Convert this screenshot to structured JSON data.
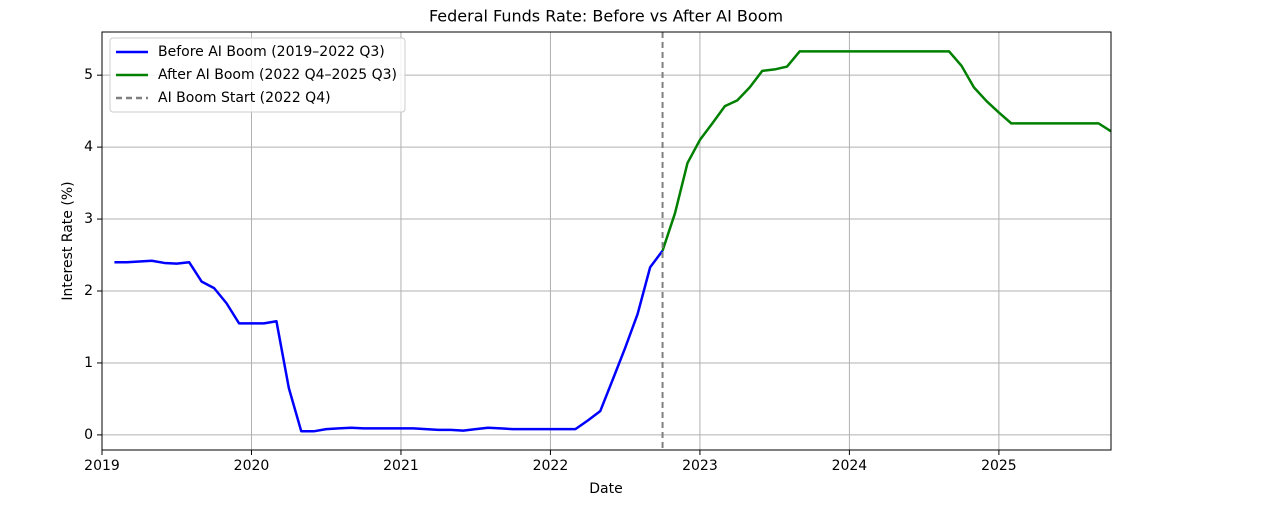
{
  "chart_data": {
    "type": "line",
    "title": "Federal Funds Rate: Before vs After AI Boom",
    "x_label": "Date",
    "y_label": "Interest Rate (%)",
    "xlim": [
      2019,
      2025.75
    ],
    "ylim": [
      -0.21,
      5.6
    ],
    "xticks": [
      2019,
      2020,
      2021,
      2022,
      2023,
      2024,
      2025
    ],
    "yticks": [
      0,
      1,
      2,
      3,
      4,
      5
    ],
    "grid": true,
    "legend": "upper left",
    "series": [
      {
        "name": "Before AI Boom (2019–2022 Q3)",
        "color": "#0000ff",
        "x": [
          2019.083,
          2019.167,
          2019.25,
          2019.333,
          2019.417,
          2019.5,
          2019.583,
          2019.667,
          2019.75,
          2019.833,
          2019.917,
          2020,
          2020.083,
          2020.167,
          2020.25,
          2020.333,
          2020.417,
          2020.5,
          2020.583,
          2020.667,
          2020.75,
          2020.833,
          2020.917,
          2021,
          2021.083,
          2021.167,
          2021.25,
          2021.333,
          2021.417,
          2021.5,
          2021.583,
          2021.667,
          2021.75,
          2021.833,
          2021.917,
          2022,
          2022.083,
          2022.167,
          2022.25,
          2022.333,
          2022.417,
          2022.5,
          2022.583,
          2022.667,
          2022.75
        ],
        "values": [
          2.4,
          2.4,
          2.41,
          2.42,
          2.39,
          2.38,
          2.4,
          2.13,
          2.04,
          1.83,
          1.55,
          1.55,
          1.55,
          1.58,
          0.65,
          0.05,
          0.05,
          0.08,
          0.09,
          0.1,
          0.09,
          0.09,
          0.09,
          0.09,
          0.09,
          0.08,
          0.07,
          0.07,
          0.06,
          0.08,
          0.1,
          0.09,
          0.08,
          0.08,
          0.08,
          0.08,
          0.08,
          0.08,
          0.2,
          0.33,
          0.77,
          1.21,
          1.68,
          2.33,
          2.56
        ]
      },
      {
        "name": "After AI Boom (2022 Q4–2025 Q3)",
        "color": "#008000",
        "x": [
          2022.75,
          2022.833,
          2022.917,
          2023,
          2023.083,
          2023.167,
          2023.25,
          2023.333,
          2023.417,
          2023.5,
          2023.583,
          2023.667,
          2023.75,
          2023.833,
          2023.917,
          2024,
          2024.083,
          2024.167,
          2024.25,
          2024.333,
          2024.417,
          2024.5,
          2024.583,
          2024.667,
          2024.75,
          2024.833,
          2024.917,
          2025,
          2025.083,
          2025.167,
          2025.25,
          2025.333,
          2025.417,
          2025.5,
          2025.583,
          2025.667,
          2025.75
        ],
        "values": [
          2.56,
          3.08,
          3.78,
          4.1,
          4.33,
          4.57,
          4.65,
          4.83,
          5.06,
          5.08,
          5.12,
          5.33,
          5.33,
          5.33,
          5.33,
          5.33,
          5.33,
          5.33,
          5.33,
          5.33,
          5.33,
          5.33,
          5.33,
          5.33,
          5.13,
          4.83,
          4.64,
          4.48,
          4.33,
          4.33,
          4.33,
          4.33,
          4.33,
          4.33,
          4.33,
          4.33,
          4.22
        ]
      }
    ],
    "vline": {
      "name": "AI Boom Start (2022 Q4)",
      "x": 2022.75,
      "color": "#808080"
    }
  }
}
